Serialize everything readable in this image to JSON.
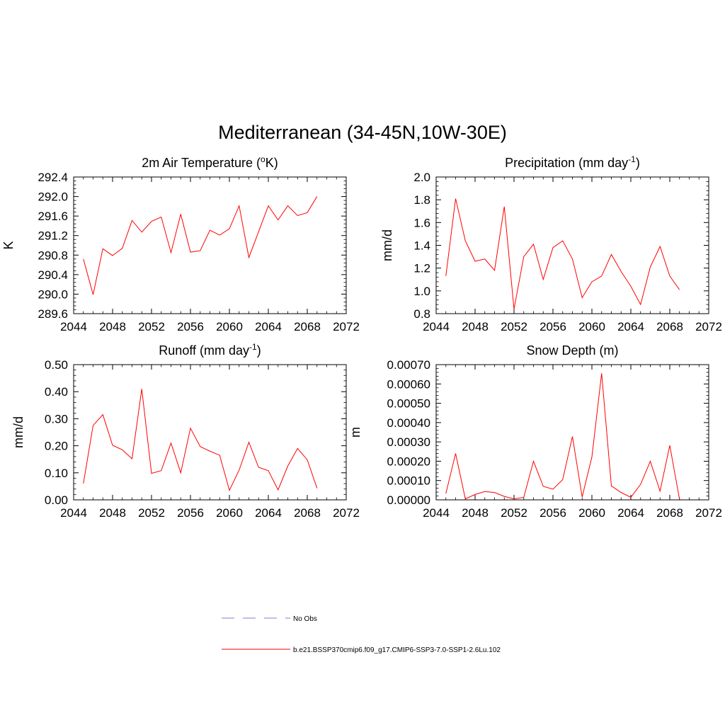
{
  "figure": {
    "title": "Mediterranean (34-45N,10W-30E)"
  },
  "legend": {
    "placement": "bottom-center",
    "entries": [
      {
        "label": "No Obs",
        "color": "#9999dd",
        "dash": "dashed"
      },
      {
        "label": "b.e21.BSSP370cmip6.f09_g17.CMIP6-SSP3-7.0-SSP1-2.6Lu.102",
        "color": "#ff0000",
        "dash": "solid"
      }
    ]
  },
  "chart_data": [
    {
      "type": "line",
      "title": "2m Air Temperature (°K)",
      "ylabel": "K",
      "xlim": [
        2044,
        2072
      ],
      "ylim": [
        289.6,
        292.4
      ],
      "xticks": [
        2044,
        2048,
        2052,
        2056,
        2060,
        2064,
        2068,
        2072
      ],
      "yticks": [
        "289.6",
        "290.0",
        "290.4",
        "290.8",
        "291.2",
        "291.6",
        "292.0",
        "292.4"
      ],
      "x": [
        2045,
        2046,
        2047,
        2048,
        2049,
        2050,
        2051,
        2052,
        2053,
        2054,
        2055,
        2056,
        2057,
        2058,
        2059,
        2060,
        2061,
        2062,
        2063,
        2064,
        2065,
        2066,
        2067,
        2068,
        2069
      ],
      "series": [
        {
          "values": [
            290.72,
            289.99,
            290.93,
            290.79,
            290.94,
            291.51,
            291.27,
            291.49,
            291.58,
            290.85,
            291.64,
            290.86,
            290.89,
            291.31,
            291.21,
            291.34,
            291.81,
            290.75,
            291.28,
            291.81,
            291.52,
            291.81,
            291.61,
            291.67,
            292.0
          ],
          "color": "#ff0000"
        }
      ]
    },
    {
      "type": "line",
      "title": "Precipitation (mm day-1)",
      "ylabel": "mm/d",
      "xlim": [
        2044,
        2072
      ],
      "ylim": [
        0.8,
        2.0
      ],
      "xticks": [
        2044,
        2048,
        2052,
        2056,
        2060,
        2064,
        2068,
        2072
      ],
      "yticks": [
        "0.8",
        "1.0",
        "1.2",
        "1.4",
        "1.6",
        "1.8",
        "2.0"
      ],
      "x": [
        2045,
        2046,
        2047,
        2048,
        2049,
        2050,
        2051,
        2052,
        2053,
        2054,
        2055,
        2056,
        2057,
        2058,
        2059,
        2060,
        2061,
        2062,
        2063,
        2064,
        2065,
        2066,
        2067,
        2068,
        2069
      ],
      "series": [
        {
          "values": [
            1.13,
            1.81,
            1.44,
            1.26,
            1.28,
            1.18,
            1.74,
            0.84,
            1.3,
            1.41,
            1.1,
            1.38,
            1.44,
            1.28,
            0.94,
            1.08,
            1.13,
            1.32,
            1.17,
            1.04,
            0.88,
            1.21,
            1.39,
            1.13,
            1.01
          ],
          "color": "#ff0000"
        }
      ]
    },
    {
      "type": "line",
      "title": "Runoff (mm day-1)",
      "ylabel": "mm/d",
      "xlim": [
        2044,
        2072
      ],
      "ylim": [
        0.0,
        0.5
      ],
      "xticks": [
        2044,
        2048,
        2052,
        2056,
        2060,
        2064,
        2068,
        2072
      ],
      "yticks": [
        "0.00",
        "0.10",
        "0.20",
        "0.30",
        "0.40",
        "0.50"
      ],
      "x": [
        2045,
        2046,
        2047,
        2048,
        2049,
        2050,
        2051,
        2052,
        2053,
        2054,
        2055,
        2056,
        2057,
        2058,
        2059,
        2060,
        2061,
        2062,
        2063,
        2064,
        2065,
        2066,
        2067,
        2068,
        2069
      ],
      "series": [
        {
          "values": [
            0.06,
            0.275,
            0.315,
            0.202,
            0.185,
            0.152,
            0.41,
            0.098,
            0.108,
            0.21,
            0.1,
            0.265,
            0.197,
            0.18,
            0.165,
            0.035,
            0.11,
            0.213,
            0.12,
            0.108,
            0.037,
            0.125,
            0.19,
            0.148,
            0.043
          ],
          "color": "#ff0000"
        }
      ]
    },
    {
      "type": "line",
      "title": "Snow Depth (m)",
      "ylabel": "m",
      "xlim": [
        2044,
        2072
      ],
      "ylim": [
        0.0,
        0.0007
      ],
      "xticks": [
        2044,
        2048,
        2052,
        2056,
        2060,
        2064,
        2068,
        2072
      ],
      "yticks": [
        "0.00000",
        "0.00010",
        "0.00020",
        "0.00030",
        "0.00040",
        "0.00050",
        "0.00060",
        "0.00070"
      ],
      "x": [
        2045,
        2046,
        2047,
        2048,
        2049,
        2050,
        2051,
        2052,
        2053,
        2054,
        2055,
        2056,
        2057,
        2058,
        2059,
        2060,
        2061,
        2062,
        2063,
        2064,
        2065,
        2066,
        2067,
        2068,
        2069
      ],
      "series": [
        {
          "values": [
            3.3e-05,
            0.00024,
            5e-06,
            2.8e-05,
            4.3e-05,
            3.8e-05,
            1.8e-05,
            5e-06,
            1.3e-05,
            0.0002,
            7e-05,
            5.5e-05,
            0.000105,
            0.000328,
            1.5e-05,
            0.000222,
            0.000655,
            7.2e-05,
            3.8e-05,
            1.3e-05,
            8e-05,
            0.0002,
            4.5e-05,
            0.000282,
            3e-06
          ],
          "color": "#ff0000"
        }
      ]
    }
  ]
}
